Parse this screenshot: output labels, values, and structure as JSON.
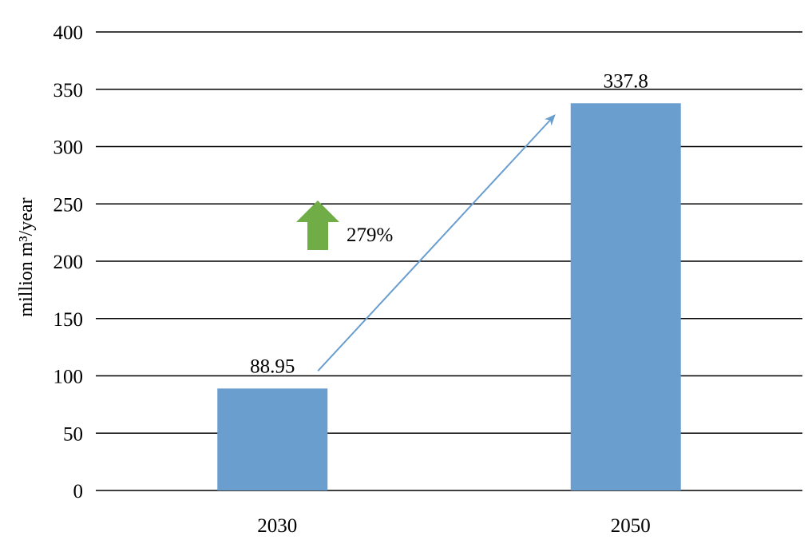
{
  "chart_data": {
    "type": "bar",
    "categories": [
      "2030",
      "2050"
    ],
    "values": [
      88.95,
      337.8
    ],
    "data_labels": [
      "88.95",
      "337.8"
    ],
    "title": "",
    "xlabel": "",
    "ylabel": "million m³/year",
    "ylim": [
      0,
      400
    ],
    "yticks": [
      0,
      50,
      100,
      150,
      200,
      250,
      300,
      350,
      400
    ],
    "grid": true,
    "legend": "none",
    "bar_color": "#6A9ECF",
    "annotation": {
      "text": "279%",
      "arrow_icon": "up-arrow-icon",
      "arrow_color": "#70AD47",
      "trend_line_color": "#6A9ECF"
    }
  }
}
